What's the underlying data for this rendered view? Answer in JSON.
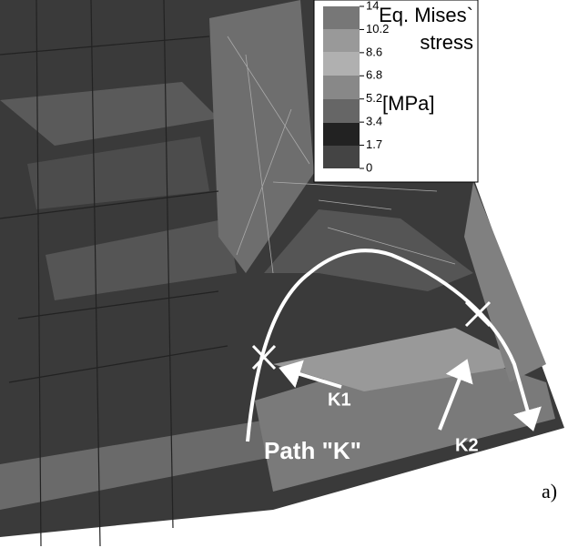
{
  "legend": {
    "title_line1": "Eq. Mises`",
    "title_line2": "stress",
    "unit": "[MPa]",
    "ticks": [
      "14",
      "10.2",
      "8.6",
      "6.8",
      "5.2",
      "3.4",
      "1.7",
      "0"
    ]
  },
  "labels": {
    "k1": "K1",
    "k2": "K2",
    "path": "Path \"K\"",
    "panel": "a)"
  }
}
